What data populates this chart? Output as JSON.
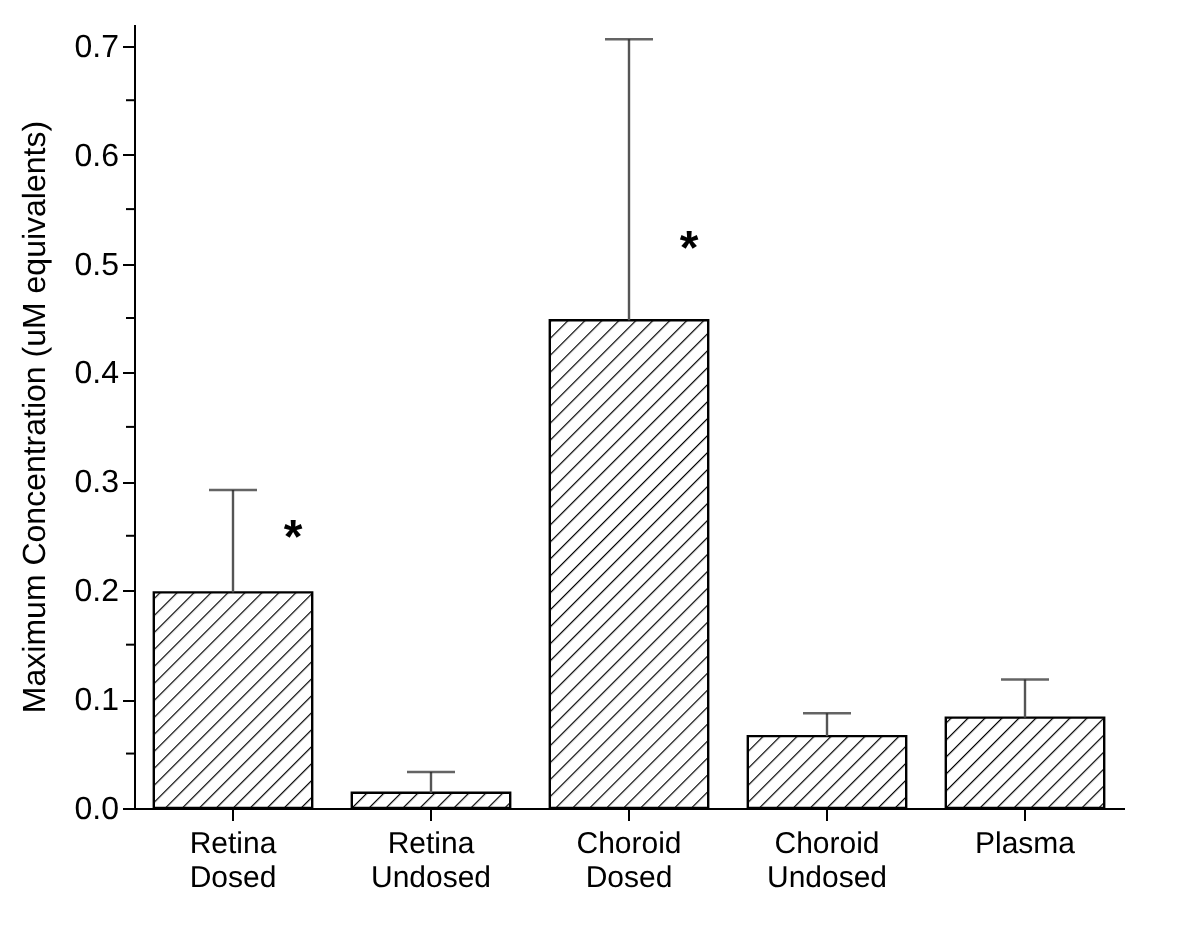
{
  "chart_data": {
    "type": "bar",
    "ylabel": "Maximum Concentration (uM equivalents)",
    "categories": [
      "Retina Dosed",
      "Retina Undosed",
      "Choroid Dosed",
      "Choroid Undosed",
      "Plasma"
    ],
    "values": [
      0.198,
      0.014,
      0.448,
      0.066,
      0.083
    ],
    "errors": [
      [
        0.198,
        0.292
      ],
      [
        0.014,
        0.033
      ],
      [
        0.448,
        0.706
      ],
      [
        0.066,
        0.087
      ],
      [
        0.083,
        0.118
      ]
    ],
    "color": "#000000",
    "ylim": [
      0,
      0.72
    ],
    "yticks": [
      {
        "value": 0,
        "label": "0.0"
      },
      {
        "value": 0.05,
        "label": null
      },
      {
        "value": 0.1,
        "label": "0.1"
      },
      {
        "value": 0.15,
        "label": null
      },
      {
        "value": 0.2,
        "label": "0.2"
      },
      {
        "value": 0.25,
        "label": null
      },
      {
        "value": 0.3,
        "label": "0.3"
      },
      {
        "value": 0.35,
        "label": null
      },
      {
        "value": 0.4,
        "label": "0.4"
      },
      {
        "value": 0.45,
        "label": null
      },
      {
        "value": 0.5,
        "label": "0.5"
      },
      {
        "value": 0.55,
        "label": null
      },
      {
        "value": 0.6,
        "label": "0.6"
      },
      {
        "value": 0.65,
        "label": null
      },
      {
        "value": 0.7,
        "label": "0.7"
      }
    ],
    "annotations": [
      {
        "text": "*",
        "x": "Retina Dosed",
        "y": 0.247
      },
      {
        "text": "*",
        "x": "Choroid Dosed",
        "y": 0.512
      }
    ],
    "grid": false
  }
}
